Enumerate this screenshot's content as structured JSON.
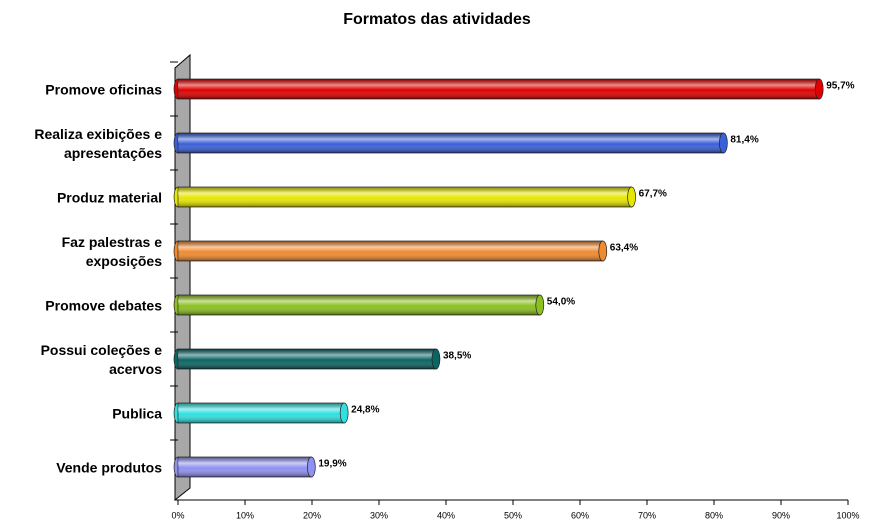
{
  "chart_data": {
    "type": "bar",
    "orientation": "horizontal",
    "title": "Formatos das atividades",
    "categories": [
      [
        "Promove oficinas"
      ],
      [
        "Realiza exibições e",
        "apresentações"
      ],
      [
        "Produz material"
      ],
      [
        "Faz palestras e",
        "exposições"
      ],
      [
        "Promove debates"
      ],
      [
        "Possui coleções e",
        "acervos"
      ],
      [
        "Publica"
      ],
      [
        "Vende produtos"
      ]
    ],
    "values": [
      95.7,
      81.4,
      67.7,
      63.4,
      54.0,
      38.5,
      24.8,
      19.9
    ],
    "value_labels": [
      "95,7%",
      "81,4%",
      "67,7%",
      "63,4%",
      "54,0%",
      "38,5%",
      "24,8%",
      "19,9%"
    ],
    "colors": [
      "#e00000",
      "#3a5fd8",
      "#e6e600",
      "#f08a30",
      "#8cc020",
      "#0c6464",
      "#30e0e0",
      "#9090f0"
    ],
    "xlim": [
      0,
      100
    ],
    "xticks": [
      {
        "value": 0,
        "label": "0%"
      },
      {
        "value": 10,
        "label": "10%"
      },
      {
        "value": 20,
        "label": "20%"
      },
      {
        "value": 30,
        "label": "30%"
      },
      {
        "value": 40,
        "label": "40%"
      },
      {
        "value": 50,
        "label": "50%"
      },
      {
        "value": 60,
        "label": "60%"
      },
      {
        "value": 70,
        "label": "70%"
      },
      {
        "value": 80,
        "label": "80%"
      },
      {
        "value": 90,
        "label": "90%"
      },
      {
        "value": 100,
        "label": "100%"
      }
    ]
  }
}
